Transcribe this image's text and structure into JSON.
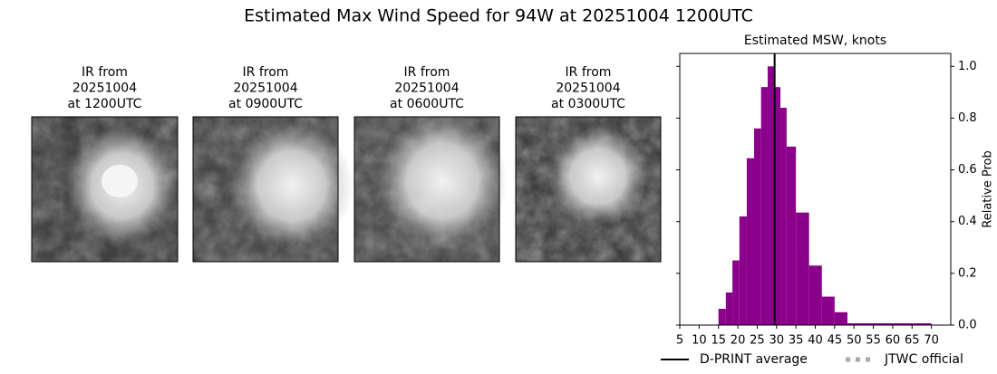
{
  "title": "Estimated Max Wind Speed for 94W at 20251004 1200UTC",
  "panels": [
    {
      "lines": [
        "IR from",
        "20251004",
        "at 1200UTC"
      ]
    },
    {
      "lines": [
        "IR from",
        "20251004",
        "at 0900UTC"
      ]
    },
    {
      "lines": [
        "IR from",
        "20251004",
        "at 0600UTC"
      ]
    },
    {
      "lines": [
        "IR from",
        "20251004",
        "at 0300UTC"
      ]
    }
  ],
  "chart_data": {
    "type": "histogram",
    "title": "Estimated MSW, knots",
    "y_label": "Relative Prob",
    "bins": [
      15,
      16.9,
      18.6,
      20.4,
      22.3,
      24.2,
      26,
      27.7,
      29.3,
      31,
      32.6,
      35,
      38.4,
      41.7,
      45,
      48.3,
      70
    ],
    "values": [
      0.063,
      0.126,
      0.25,
      0.42,
      0.645,
      0.76,
      0.92,
      1.0,
      0.92,
      0.84,
      0.69,
      0.435,
      0.23,
      0.11,
      0.05,
      0.007
    ],
    "color": "#8b008b",
    "xlim": [
      5,
      75
    ],
    "xticks": [
      5,
      10,
      15,
      20,
      25,
      30,
      35,
      40,
      45,
      50,
      55,
      60,
      65,
      70
    ],
    "ylim": [
      0,
      1.05
    ],
    "yticks": [
      {
        "value": 0,
        "label": "0.0"
      },
      0.2,
      0.4,
      0.6,
      0.8,
      {
        "value": 1,
        "label": "1.0"
      }
    ],
    "reference_lines": [
      {
        "name": "D-PRINT average",
        "value": 29.5,
        "color": "#000000",
        "style": "solid"
      },
      {
        "name": "JTWC official",
        "value": null,
        "color": "#aaaaaa",
        "style": "dotted"
      }
    ],
    "legend": "lower center"
  }
}
